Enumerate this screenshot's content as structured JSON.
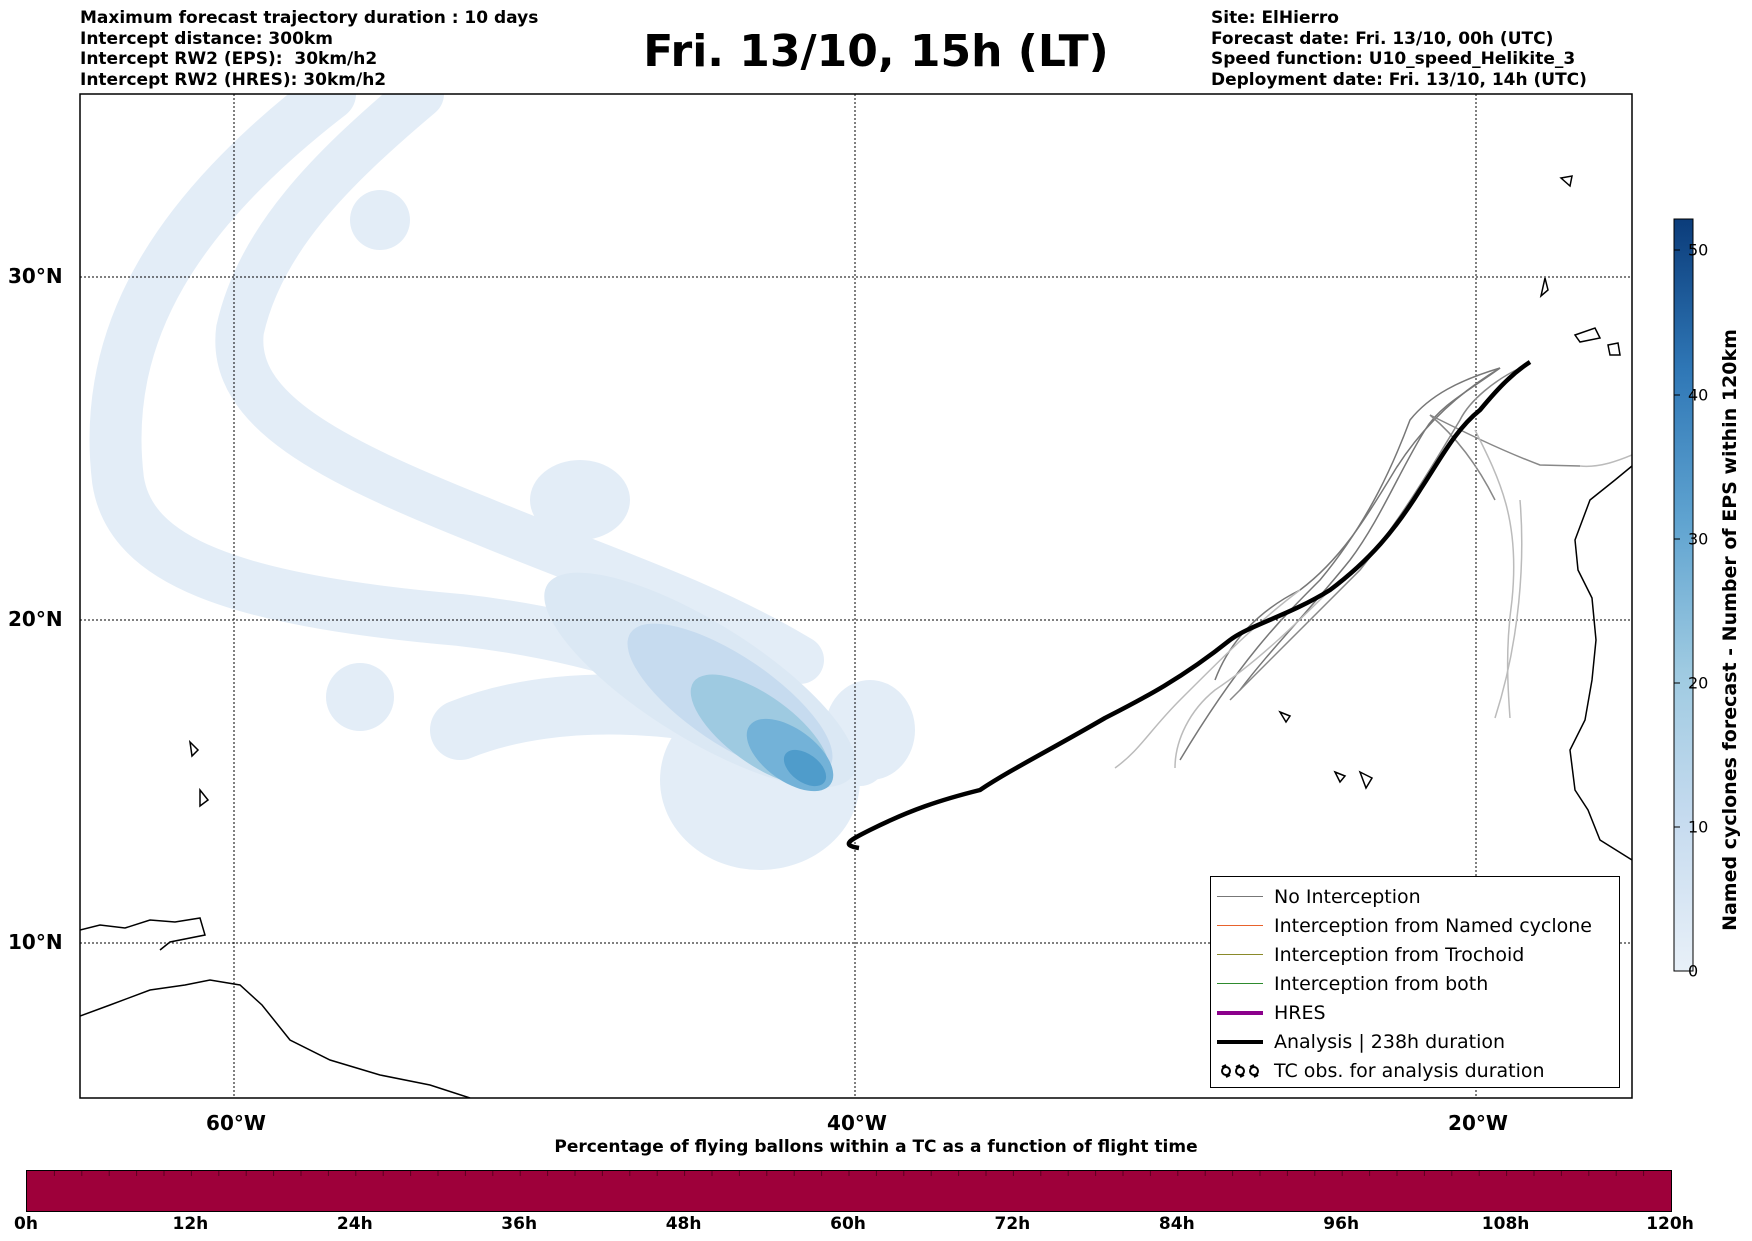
{
  "header": {
    "title": "Fri. 13/10, 15h (LT)",
    "left_lines": [
      "Maximum forecast trajectory duration : 10 days",
      "Intercept distance: 300km",
      "Intercept RW2 (EPS):  30km/h2",
      "Intercept RW2 (HRES): 30km/h2"
    ],
    "right_lines": [
      "Site: ElHierro",
      "Forecast date: Fri. 13/10, 00h (UTC)",
      "Speed function: U10_speed_Helikite_3",
      "Deployment date: Fri. 13/10, 14h (UTC)"
    ]
  },
  "map": {
    "lat_labels": [
      "30°N",
      "20°N",
      "10°N"
    ],
    "lon_labels": [
      "60°W",
      "40°W",
      "20°W"
    ],
    "gridlines": true
  },
  "legend": {
    "placement": "lower-right",
    "items": [
      {
        "label": "No Interception",
        "color": "#777777"
      },
      {
        "label": "Interception from Named cyclone",
        "color": "#e8622c"
      },
      {
        "label": "Interception from Trochoid",
        "color": "#8a8a2a"
      },
      {
        "label": "Interception from both",
        "color": "#2e8b2e"
      },
      {
        "label": "HRES",
        "color": "#8b008b"
      },
      {
        "label": "Analysis | 238h duration",
        "color": "#000000"
      },
      {
        "label": "TC obs. for analysis duration",
        "color": "#000000",
        "icon": "tc-symbol-icon"
      }
    ]
  },
  "colorbar": {
    "title": "Named cyclones forecast - Number of EPS within 120km",
    "ticks": [
      "0",
      "10",
      "20",
      "30",
      "40",
      "50"
    ],
    "min": 0,
    "max": 52,
    "color_low": "#e8f0f8",
    "color_high": "#0b3c7a"
  },
  "time_bar": {
    "title": "Percentage of flying ballons within a TC as a function of flight time",
    "labels": [
      "0h",
      "12h",
      "24h",
      "36h",
      "48h",
      "60h",
      "72h",
      "84h",
      "96h",
      "108h",
      "120h"
    ],
    "color": "#9e003a"
  }
}
